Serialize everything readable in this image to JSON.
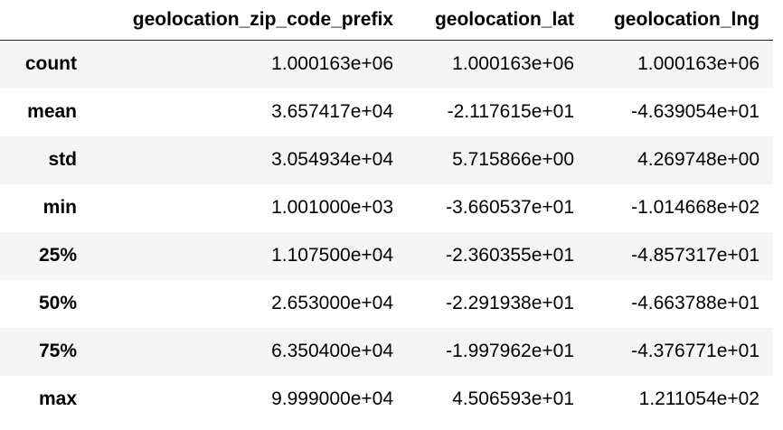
{
  "table": {
    "columns": [
      "geolocation_zip_code_prefix",
      "geolocation_lat",
      "geolocation_lng"
    ],
    "index": [
      "count",
      "mean",
      "std",
      "min",
      "25%",
      "50%",
      "75%",
      "max"
    ],
    "rows": [
      [
        "1.000163e+06",
        "1.000163e+06",
        "1.000163e+06"
      ],
      [
        "3.657417e+04",
        "-2.117615e+01",
        "-4.639054e+01"
      ],
      [
        "3.054934e+04",
        "5.715866e+00",
        "4.269748e+00"
      ],
      [
        "1.001000e+03",
        "-3.660537e+01",
        "-1.014668e+02"
      ],
      [
        "1.107500e+04",
        "-2.360355e+01",
        "-4.857317e+01"
      ],
      [
        "2.653000e+04",
        "-2.291938e+01",
        "-4.663788e+01"
      ],
      [
        "6.350400e+04",
        "-1.997962e+01",
        "-4.376771e+01"
      ],
      [
        "9.999000e+04",
        "4.506593e+01",
        "1.211054e+02"
      ]
    ]
  }
}
